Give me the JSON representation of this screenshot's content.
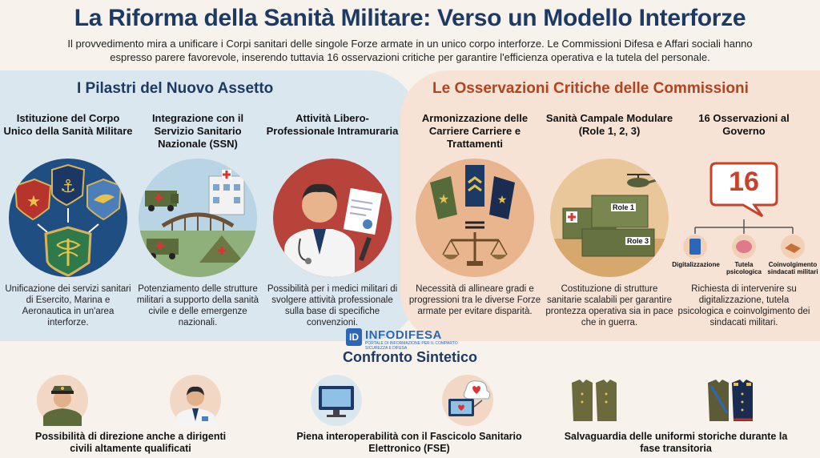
{
  "header": {
    "title": "La Riforma della Sanità Militare: Verso un Modello Interforze",
    "subtitle": "Il provvedimento mira a unificare i Corpi sanitari delle singole Forze armate in un unico corpo interforze. Le Commissioni Difesa e Affari sociali hanno espresso parere favorevole, inserendo tuttavia 16 osservazioni critiche per garantire l'efficienza operativa e la tutela del personale."
  },
  "left_panel": {
    "title": "I Pilastri del Nuovo Assetto",
    "columns": [
      {
        "heading": "Istituzione del Corpo Unico della Sanità Militare",
        "text": "Unificazione dei servizi sanitari di Esercito, Marina e Aeronautica in un'area interforze.",
        "icon": "shields-merge-icon"
      },
      {
        "heading": "Integrazione con il Servizio Sanitario Nazionale (SSN)",
        "text": "Potenziamento delle strutture militari a supporto della sanità civile e delle emergenze nazionali.",
        "icon": "hospital-bridge-icon"
      },
      {
        "heading": "Attività Libero-Professionale Intramuraria",
        "text": "Possibilità per i medici militari di svolgere attività professionale sulla base di specifiche convenzioni.",
        "icon": "doctor-certificate-icon"
      }
    ]
  },
  "right_panel": {
    "title": "Le Osservazioni Critiche delle Commissioni",
    "columns": [
      {
        "heading": "Armonizzazione delle Carriere Carriere e Trattamenti",
        "text": "Necessità di allineare gradi e progressioni tra le diverse Forze armate per evitare disparità.",
        "icon": "rank-scale-icon"
      },
      {
        "heading": "Sanità Campale Modulare (Role 1, 2, 3)",
        "text": "Costituzione di strutture sanitarie scalabili per garantire prontezza operativa sia in pace che in guerra.",
        "icon": "field-containers-icon",
        "box_labels": [
          "Role 1",
          "Role 3"
        ]
      },
      {
        "heading": "16 Osservazioni al Governo",
        "text": "Richiesta di intervenire su digitalizzazione, tutela psicologica e coinvolgimento dei sindacati militari.",
        "icon": "speech-bubble-16-icon",
        "number": "16",
        "sub_items": [
          "Digitalizzazione",
          "Tutela psicologica",
          "Coinvolgimento sindacati militari"
        ]
      }
    ]
  },
  "logo": {
    "badge": "ID",
    "name": "INFODIFESA",
    "tagline": "PORTALE DI INFORMAZIONE PER IL COMPARTO SICUREZZA E DIFESA"
  },
  "comparison": {
    "title": "Confronto Sintetico",
    "items": [
      {
        "text": "Possibilità di direzione anche a dirigenti civili altamente qualificati",
        "icons": [
          "military-officer-icon",
          "civilian-doctor-icon"
        ]
      },
      {
        "text": "Piena interoperabilità con il Fascicolo Sanitario Elettronico (FSE)",
        "icons": [
          "monitor-icon",
          "cloud-health-icon"
        ]
      },
      {
        "text": "Salvaguardia delle uniformi storiche durante la fase transitoria",
        "icons": [
          "uniforms-icon",
          "historic-uniforms-icon"
        ]
      }
    ]
  },
  "colors": {
    "navy": "#1c3a64",
    "orange": "#b1441f",
    "left_bg": "#dbe7ef",
    "right_bg": "#f6e3d6"
  }
}
